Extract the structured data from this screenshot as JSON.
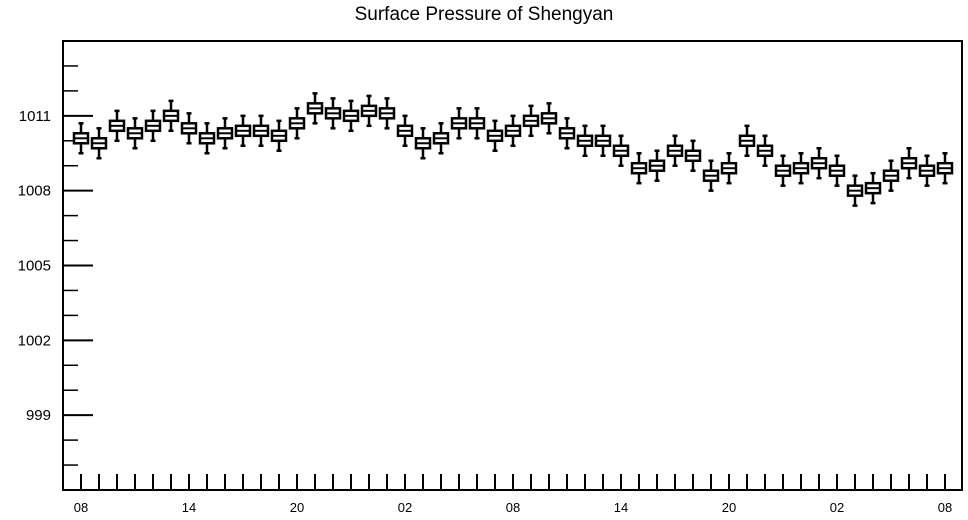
{
  "chart_data": {
    "type": "boxplot",
    "title": "Surface Pressure of Shengyan",
    "xlabel": "",
    "ylabel": "",
    "ylim": [
      996,
      1014
    ],
    "y_ticks": [
      999,
      1002,
      1005,
      1008,
      1011
    ],
    "x_tick_labels": [
      "08",
      "14",
      "20",
      "02",
      "08",
      "14",
      "20",
      "02",
      "08"
    ],
    "hours": [
      "08",
      "09",
      "10",
      "11",
      "12",
      "13",
      "14",
      "15",
      "16",
      "17",
      "18",
      "19",
      "20",
      "21",
      "22",
      "23",
      "00",
      "01",
      "02",
      "03",
      "04",
      "05",
      "06",
      "07",
      "08",
      "09",
      "10",
      "11",
      "12",
      "13",
      "14",
      "15",
      "16",
      "17",
      "18",
      "19",
      "20",
      "21",
      "22",
      "23",
      "00",
      "01",
      "02",
      "03",
      "04",
      "05",
      "06",
      "07",
      "08"
    ],
    "medians": [
      1010.1,
      1009.9,
      1010.6,
      1010.3,
      1010.6,
      1011.0,
      1010.5,
      1010.1,
      1010.3,
      1010.4,
      1010.4,
      1010.2,
      1010.7,
      1011.3,
      1011.1,
      1011.0,
      1011.2,
      1011.1,
      1010.4,
      1009.9,
      1010.1,
      1010.7,
      1010.7,
      1010.2,
      1010.4,
      1010.8,
      1010.9,
      1010.3,
      1010.0,
      1010.0,
      1009.6,
      1008.9,
      1009.0,
      1009.6,
      1009.4,
      1008.6,
      1008.9,
      1010.0,
      1009.6,
      1008.8,
      1008.9,
      1009.1,
      1008.8,
      1008.0,
      1008.1,
      1008.6,
      1009.1,
      1008.8,
      1008.9
    ],
    "box_half_range": 0.2,
    "whisker_half_range": 0.6
  }
}
